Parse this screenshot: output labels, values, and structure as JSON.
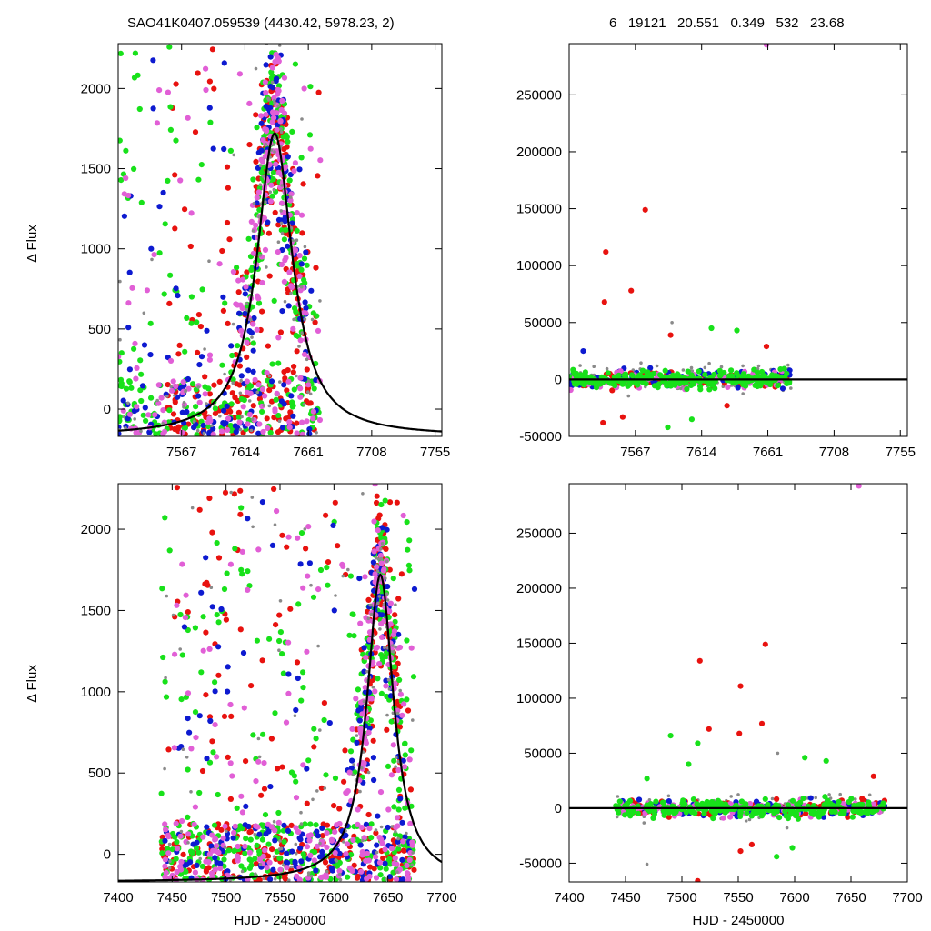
{
  "header": {
    "left_title": "SAO41K0407.059539 (4430.42, 5978.23,    2)",
    "right_title": "6   19121   20.551   0.349   532   23.68"
  },
  "colors": {
    "red": "#e8120f",
    "green": "#18e11a",
    "blue": "#0d1ad0",
    "magenta": "#e15fd6",
    "gray": "#8a8a8a",
    "curve": "#000000"
  },
  "chart_data": [
    {
      "id": "top-left",
      "type": "scatter",
      "title": "",
      "xlabel": "",
      "ylabel": "Δ Flux",
      "xlim": [
        7520,
        7760
      ],
      "ylim": [
        -170,
        2280
      ],
      "xticks": [
        7567,
        7614,
        7661,
        7708,
        7755
      ],
      "yticks": [
        0,
        500,
        1000,
        1500,
        2000
      ],
      "grid": false,
      "legend": "none",
      "model_curve": {
        "shape": "lorentzian",
        "peak_x": 7636,
        "peak_y": 1720,
        "baseline": -170,
        "half_width": 16
      },
      "series": [
        {
          "color": "red",
          "cluster": [
            7555,
            7670,
            -160,
            2260
          ],
          "peak_frac": 0.45,
          "count": 320
        },
        {
          "color": "green",
          "cluster": [
            7520,
            7670,
            -160,
            2260
          ],
          "peak_frac": 0.45,
          "count": 330
        },
        {
          "color": "blue",
          "cluster": [
            7520,
            7670,
            -160,
            2260
          ],
          "peak_frac": 0.4,
          "count": 180
        },
        {
          "color": "magenta",
          "cluster": [
            7520,
            7670,
            -160,
            2260
          ],
          "peak_frac": 0.5,
          "count": 240
        },
        {
          "color": "gray",
          "cluster": [
            7520,
            7670,
            -160,
            2260
          ],
          "peak_frac": 0.5,
          "count": 120,
          "small": true
        }
      ]
    },
    {
      "id": "top-right",
      "type": "scatter",
      "title": "",
      "xlabel": "",
      "ylabel": "",
      "xlim": [
        7520,
        7760
      ],
      "ylim": [
        -50000,
        295000
      ],
      "xticks": [
        7567,
        7614,
        7661,
        7708,
        7755
      ],
      "yticks": [
        -50000,
        0,
        50000,
        100000,
        150000,
        200000,
        250000
      ],
      "grid": false,
      "legend": "none",
      "band": {
        "x_range": [
          7520,
          7678
        ],
        "y_spread": 4000
      },
      "outliers": [
        {
          "x": 7546,
          "y": 112000,
          "color": "red"
        },
        {
          "x": 7574,
          "y": 149000,
          "color": "red"
        },
        {
          "x": 7545,
          "y": 68000,
          "color": "red"
        },
        {
          "x": 7564,
          "y": 78000,
          "color": "red"
        },
        {
          "x": 7592,
          "y": 39000,
          "color": "red"
        },
        {
          "x": 7621,
          "y": 45000,
          "color": "green"
        },
        {
          "x": 7639,
          "y": 43000,
          "color": "green"
        },
        {
          "x": 7593,
          "y": 50000,
          "color": "gray"
        },
        {
          "x": 7660,
          "y": 29000,
          "color": "red"
        },
        {
          "x": 7530,
          "y": 25000,
          "color": "blue"
        },
        {
          "x": 7544,
          "y": -38000,
          "color": "red"
        },
        {
          "x": 7558,
          "y": -33000,
          "color": "red"
        },
        {
          "x": 7590,
          "y": -42000,
          "color": "green"
        },
        {
          "x": 7607,
          "y": -35000,
          "color": "green"
        },
        {
          "x": 7632,
          "y": -23000,
          "color": "red"
        },
        {
          "x": 7660,
          "y": 294000,
          "color": "magenta"
        }
      ],
      "model_curve": {
        "shape": "flat",
        "y": 0
      }
    },
    {
      "id": "bottom-left",
      "type": "scatter",
      "title": "",
      "xlabel": "HJD - 2450000",
      "ylabel": "Δ Flux",
      "xlim": [
        7400,
        7700
      ],
      "ylim": [
        -170,
        2280
      ],
      "xticks": [
        7400,
        7450,
        7500,
        7550,
        7600,
        7650,
        7700
      ],
      "yticks": [
        0,
        500,
        1000,
        1500,
        2000
      ],
      "grid": false,
      "legend": "none",
      "model_curve": {
        "shape": "lorentzian",
        "peak_x": 7643,
        "peak_y": 1720,
        "baseline": -170,
        "half_width": 15
      },
      "series": [
        {
          "color": "red",
          "cluster": [
            7440,
            7675,
            -160,
            2260
          ],
          "peak_frac": 0.35,
          "count": 380
        },
        {
          "color": "green",
          "cluster": [
            7440,
            7675,
            -160,
            2260
          ],
          "peak_frac": 0.3,
          "count": 420
        },
        {
          "color": "blue",
          "cluster": [
            7440,
            7675,
            -160,
            2260
          ],
          "peak_frac": 0.3,
          "count": 220
        },
        {
          "color": "magenta",
          "cluster": [
            7440,
            7675,
            -160,
            2260
          ],
          "peak_frac": 0.35,
          "count": 300
        },
        {
          "color": "gray",
          "cluster": [
            7440,
            7675,
            -160,
            2260
          ],
          "peak_frac": 0.35,
          "count": 140,
          "small": true
        }
      ]
    },
    {
      "id": "bottom-right",
      "type": "scatter",
      "title": "",
      "xlabel": "HJD - 2450000",
      "ylabel": "",
      "xlim": [
        7400,
        7700
      ],
      "ylim": [
        -67000,
        295000
      ],
      "xticks": [
        7400,
        7450,
        7500,
        7550,
        7600,
        7650,
        7700
      ],
      "yticks": [
        -50000,
        0,
        50000,
        100000,
        150000,
        200000,
        250000
      ],
      "grid": false,
      "legend": "none",
      "band": {
        "x_range": [
          7440,
          7680
        ],
        "y_spread": 4000
      },
      "outliers": [
        {
          "x": 7516,
          "y": 134000,
          "color": "red"
        },
        {
          "x": 7552,
          "y": 111000,
          "color": "red"
        },
        {
          "x": 7574,
          "y": 149000,
          "color": "red"
        },
        {
          "x": 7524,
          "y": 72000,
          "color": "red"
        },
        {
          "x": 7571,
          "y": 77000,
          "color": "red"
        },
        {
          "x": 7551,
          "y": 68000,
          "color": "red"
        },
        {
          "x": 7490,
          "y": 66000,
          "color": "green"
        },
        {
          "x": 7514,
          "y": 59000,
          "color": "green"
        },
        {
          "x": 7506,
          "y": 40000,
          "color": "green"
        },
        {
          "x": 7609,
          "y": 46000,
          "color": "green"
        },
        {
          "x": 7628,
          "y": 43000,
          "color": "green"
        },
        {
          "x": 7585,
          "y": 50000,
          "color": "gray"
        },
        {
          "x": 7670,
          "y": 29000,
          "color": "red"
        },
        {
          "x": 7469,
          "y": 27000,
          "color": "green"
        },
        {
          "x": 7552,
          "y": -39000,
          "color": "red"
        },
        {
          "x": 7562,
          "y": -33000,
          "color": "red"
        },
        {
          "x": 7584,
          "y": -44000,
          "color": "green"
        },
        {
          "x": 7598,
          "y": -36000,
          "color": "green"
        },
        {
          "x": 7514,
          "y": -66000,
          "color": "red"
        },
        {
          "x": 7469,
          "y": -51000,
          "color": "gray"
        },
        {
          "x": 7657,
          "y": 293000,
          "color": "magenta"
        }
      ],
      "model_curve": {
        "shape": "flat",
        "y": 0
      }
    }
  ]
}
